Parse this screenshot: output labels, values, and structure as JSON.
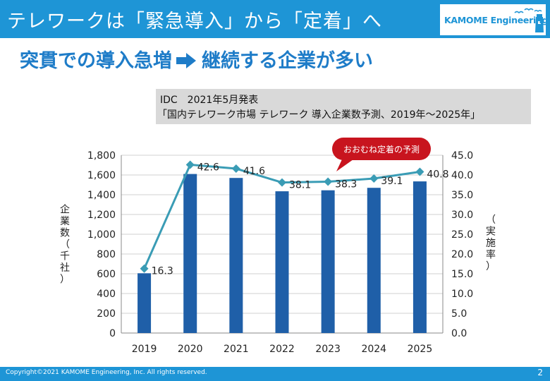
{
  "header": {
    "title": "テレワークは「緊急導入」から「定着」へ",
    "logo_text": "KAMOME Engineering"
  },
  "subtitle": {
    "left": "突貫での導入急増",
    "right": "継続する企業が多い"
  },
  "source": {
    "line1": "IDC　2021年5月発表",
    "line2": "「国内テレワーク市場 テレワーク 導入企業数予測、2019年～2025年」"
  },
  "colors": {
    "brand": "#1e95d6",
    "bar": "#1f5fa8",
    "line": "#3a9cb5",
    "callout": "#c8141e"
  },
  "chart_data": {
    "type": "bar",
    "categories": [
      "2019",
      "2020",
      "2021",
      "2022",
      "2023",
      "2024",
      "2025"
    ],
    "series": [
      {
        "name": "企業数（千社）",
        "type": "bar",
        "axis": "left",
        "values": [
          605,
          1610,
          1570,
          1435,
          1445,
          1470,
          1535
        ]
      },
      {
        "name": "実施率",
        "type": "line",
        "axis": "right",
        "values": [
          16.3,
          42.6,
          41.6,
          38.1,
          38.3,
          39.1,
          40.8
        ]
      }
    ],
    "data_labels": [
      "16.3",
      "42.6",
      "41.6",
      "38.1",
      "38.3",
      "39.1",
      "40.8"
    ],
    "ylabel": "企業数（千社）",
    "ylabel_right": "（実施率）",
    "ylim": [
      0,
      1800
    ],
    "ylim_right": [
      0,
      45
    ],
    "yticks_left": [
      "0",
      "200",
      "400",
      "600",
      "800",
      "1,000",
      "1,200",
      "1,400",
      "1,600",
      "1,800"
    ],
    "yticks_right": [
      "0.0",
      "5.0",
      "10.0",
      "15.0",
      "20.0",
      "25.0",
      "30.0",
      "35.0",
      "40.0",
      "45.0"
    ],
    "callout": "おおむね定着の予測",
    "grid": true
  },
  "footer": {
    "copyright": "Copyright©2021 KAMOME Engineering, Inc. All rights reserved.",
    "page": "2"
  }
}
